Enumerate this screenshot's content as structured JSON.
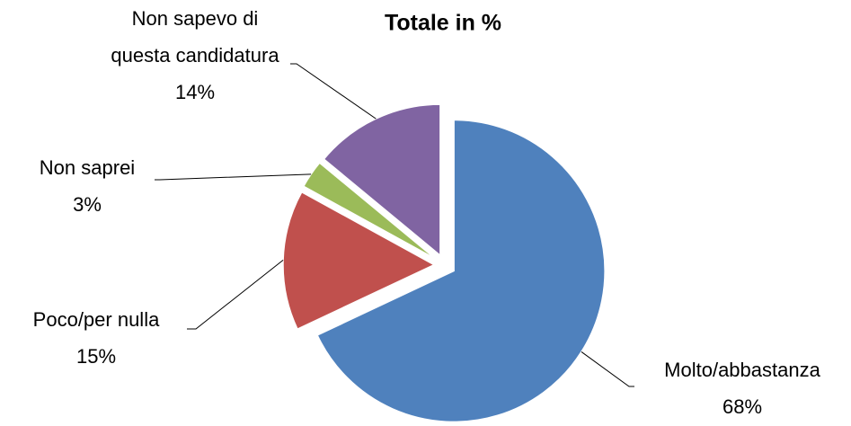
{
  "chart_data": {
    "type": "pie",
    "title": "Totale in %",
    "categories": [
      "Molto/abbastanza",
      "Poco/per nulla",
      "Non saprei",
      "Non sapevo di questa candidatura"
    ],
    "values": [
      68,
      15,
      3,
      14
    ],
    "value_labels": [
      "68%",
      "15%",
      "3%",
      "14%"
    ],
    "colors": [
      "#4f81bd",
      "#c0504d",
      "#9bbb59",
      "#8064a2"
    ]
  }
}
